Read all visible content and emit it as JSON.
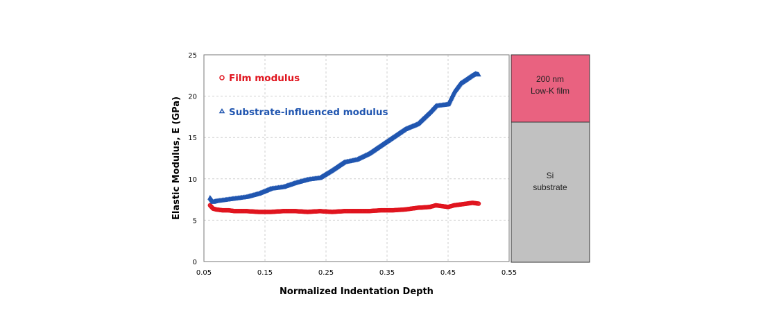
{
  "chart_data": {
    "type": "scatter",
    "xlabel": "Normalized Indentation Depth",
    "ylabel": "Elastic Modulus, E (GPa)",
    "xlim": [
      0.05,
      0.55
    ],
    "ylim": [
      0,
      25
    ],
    "x_ticks": [
      "0.05",
      "0.15",
      "0.25",
      "0.35",
      "0.45",
      "0.55"
    ],
    "y_ticks": [
      "0",
      "5",
      "10",
      "15",
      "20",
      "25"
    ],
    "grid": true,
    "legend_position": "top-left",
    "series": [
      {
        "name": "Film modulus",
        "marker": "circle",
        "color": "#e0141e",
        "x": [
          0.06,
          0.065,
          0.07,
          0.08,
          0.09,
          0.1,
          0.12,
          0.14,
          0.16,
          0.18,
          0.2,
          0.22,
          0.24,
          0.26,
          0.28,
          0.3,
          0.32,
          0.34,
          0.36,
          0.38,
          0.4,
          0.42,
          0.43,
          0.44,
          0.45,
          0.46,
          0.47,
          0.48,
          0.49,
          0.5
        ],
        "y": [
          6.8,
          6.4,
          6.3,
          6.2,
          6.2,
          6.1,
          6.1,
          6.0,
          6.0,
          6.1,
          6.1,
          6.0,
          6.1,
          6.0,
          6.1,
          6.1,
          6.1,
          6.2,
          6.2,
          6.3,
          6.5,
          6.6,
          6.8,
          6.7,
          6.6,
          6.8,
          6.9,
          7.0,
          7.1,
          7.0
        ]
      },
      {
        "name": "Substrate-influenced modulus",
        "marker": "triangle",
        "color": "#2156b0",
        "x": [
          0.06,
          0.065,
          0.07,
          0.08,
          0.09,
          0.1,
          0.12,
          0.14,
          0.16,
          0.18,
          0.2,
          0.22,
          0.24,
          0.26,
          0.28,
          0.3,
          0.32,
          0.34,
          0.36,
          0.38,
          0.4,
          0.42,
          0.43,
          0.44,
          0.45,
          0.46,
          0.47,
          0.48,
          0.49,
          0.495,
          0.5
        ],
        "y": [
          7.7,
          7.2,
          7.3,
          7.4,
          7.5,
          7.6,
          7.8,
          8.2,
          8.8,
          9.0,
          9.5,
          9.9,
          10.1,
          11.0,
          12.0,
          12.3,
          13.0,
          14.0,
          15.0,
          16.0,
          16.6,
          18.0,
          18.8,
          18.9,
          19.0,
          20.5,
          21.5,
          22.0,
          22.5,
          22.7,
          22.6
        ]
      }
    ]
  },
  "stack": {
    "film_label_1": "200 nm",
    "film_label_2": "Low-K film",
    "film_color": "#e96280",
    "substrate_label_1": "Si",
    "substrate_label_2": "substrate",
    "substrate_color": "#c1c1c1"
  }
}
